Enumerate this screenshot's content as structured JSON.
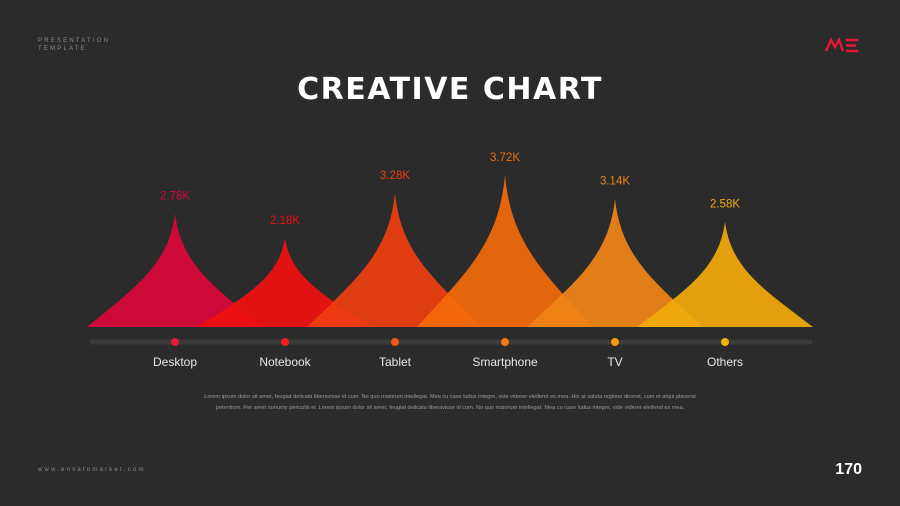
{
  "header": {
    "brand_line1": "PRESENTATION",
    "brand_line2": "TEMPLATE",
    "logo": "ME-logo"
  },
  "title": "CREATIVE CHART",
  "chart_data": {
    "type": "area",
    "categories": [
      "Desktop",
      "Notebook",
      "Tablet",
      "Smartphone",
      "TV",
      "Others"
    ],
    "values": [
      2.78,
      2.18,
      3.28,
      3.72,
      3.14,
      2.58
    ],
    "value_labels": [
      "2.78K",
      "2.18K",
      "3.28K",
      "3.72K",
      "3.14K",
      "2.58K"
    ],
    "colors": [
      "#d9063a",
      "#ee1010",
      "#ee3d10",
      "#f26b0a",
      "#f08417",
      "#f0aa0a"
    ],
    "marker_colors": [
      "#e8173a",
      "#f0201a",
      "#f25a18",
      "#f27a14",
      "#f29a14",
      "#f5b40a"
    ],
    "ylim": [
      0,
      3.72
    ],
    "grid": false,
    "legend": "none"
  },
  "description": "Lorem ipsum dolor sit amet, feugiat delicata liberavisse id cum. No quo maiorum intellegat. Mea cu case ludus integre, vide viderer eleifend ex mea. His at soluta regione diceret, cum et atqui placerat petentium. Per amet nonumy periculis ei. Lorem ipsum dolor sit amet, feugiat delicata liberavisse id cum. No quo maiorum intellegat. Mea cu case ludus integre, vide viderer eleifend ex mea.",
  "footer": {
    "website": "www.envatomarket.com",
    "page_number": "170"
  }
}
